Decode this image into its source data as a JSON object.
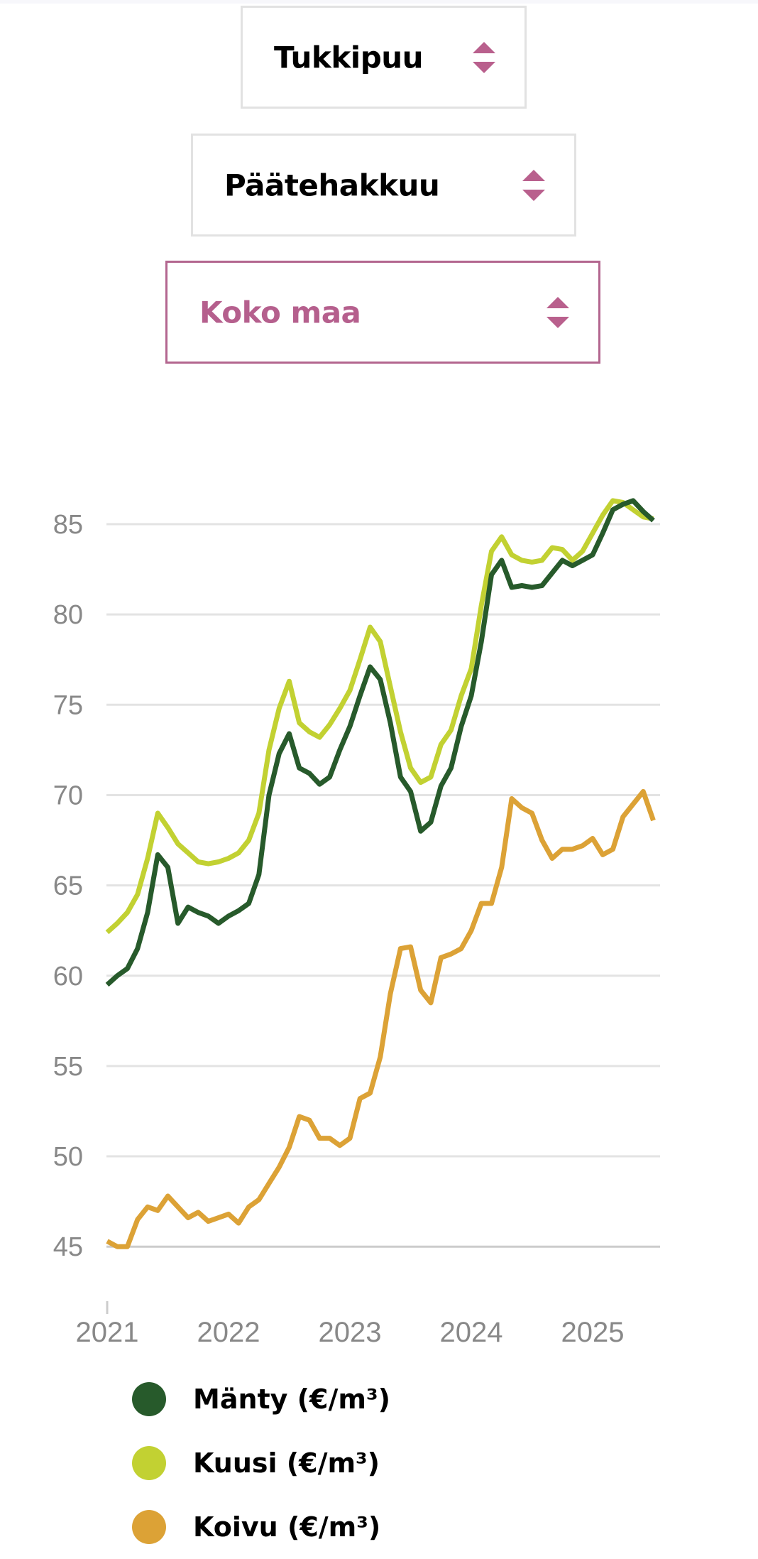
{
  "filters": {
    "assortment": {
      "value": "Tukkipuu"
    },
    "cutting_type": {
      "value": "Päätehakkuu"
    },
    "region": {
      "value": "Koko maa"
    }
  },
  "colors": {
    "accent": "#b55f8d",
    "manty": "#275a2b",
    "kuusi": "#c2d132",
    "koivu": "#dca236",
    "grid": "#e3e3e3",
    "axis_text": "#888888"
  },
  "chart_data": {
    "type": "line",
    "title": "",
    "xlabel": "",
    "ylabel": "",
    "x_unit": "month",
    "x_start": "2021-01",
    "x": [
      "2021-01",
      "2021-02",
      "2021-03",
      "2021-04",
      "2021-05",
      "2021-06",
      "2021-07",
      "2021-08",
      "2021-09",
      "2021-10",
      "2021-11",
      "2021-12",
      "2022-01",
      "2022-02",
      "2022-03",
      "2022-04",
      "2022-05",
      "2022-06",
      "2022-07",
      "2022-08",
      "2022-09",
      "2022-10",
      "2022-11",
      "2022-12",
      "2023-01",
      "2023-02",
      "2023-03",
      "2023-04",
      "2023-05",
      "2023-06",
      "2023-07",
      "2023-08",
      "2023-09",
      "2023-10",
      "2023-11",
      "2023-12",
      "2024-01",
      "2024-02",
      "2024-03",
      "2024-04",
      "2024-05",
      "2024-06",
      "2024-07",
      "2024-08",
      "2024-09",
      "2024-10",
      "2024-11",
      "2024-12",
      "2025-01",
      "2025-02",
      "2025-03",
      "2025-04",
      "2025-05",
      "2025-06",
      "2025-07"
    ],
    "ylim": [
      45,
      87
    ],
    "xlim": [
      2021.0,
      2025.6
    ],
    "y_ticks": [
      "45",
      "50",
      "55",
      "60",
      "65",
      "70",
      "75",
      "80",
      "85"
    ],
    "y_tick_values": [
      45,
      50,
      55,
      60,
      65,
      70,
      75,
      80,
      85
    ],
    "x_ticks": [
      "2021",
      "2022",
      "2023",
      "2024",
      "2025"
    ],
    "x_tick_values": [
      2021,
      2022,
      2023,
      2024,
      2025
    ],
    "grid": true,
    "legend_position": "bottom",
    "series": [
      {
        "name": "Mänty (€/m³)",
        "color": "#275a2b",
        "values": [
          59.5,
          60.0,
          60.4,
          61.5,
          63.5,
          66.7,
          66.0,
          62.9,
          63.8,
          63.5,
          63.3,
          62.9,
          63.3,
          63.6,
          64.0,
          65.6,
          70.0,
          72.3,
          73.4,
          71.5,
          71.2,
          70.6,
          71.0,
          72.5,
          73.8,
          75.5,
          77.1,
          76.4,
          74.0,
          71.0,
          70.2,
          68.0,
          68.5,
          70.5,
          71.5,
          73.8,
          75.5,
          78.5,
          82.2,
          83.0,
          81.5,
          81.6,
          81.5,
          81.6,
          82.3,
          83.0,
          82.7,
          83.0,
          83.3,
          84.5,
          85.8,
          86.1,
          86.3,
          85.7,
          85.2
        ]
      },
      {
        "name": "Kuusi (€/m³)",
        "color": "#c2d132",
        "values": [
          62.4,
          62.9,
          63.5,
          64.5,
          66.5,
          69.0,
          68.2,
          67.3,
          66.8,
          66.3,
          66.2,
          66.3,
          66.5,
          66.8,
          67.5,
          69.0,
          72.5,
          74.8,
          76.3,
          74.0,
          73.5,
          73.2,
          73.9,
          74.8,
          75.8,
          77.5,
          79.3,
          78.5,
          76.0,
          73.5,
          71.5,
          70.7,
          71.0,
          72.8,
          73.6,
          75.5,
          77.0,
          80.5,
          83.5,
          84.3,
          83.3,
          83.0,
          82.9,
          83.0,
          83.7,
          83.6,
          83.0,
          83.5,
          84.5,
          85.5,
          86.3,
          86.2,
          85.8,
          85.4,
          85.3
        ]
      },
      {
        "name": "Koivu (€/m³)",
        "color": "#dca236",
        "values": [
          45.3,
          45.0,
          45.0,
          46.5,
          47.2,
          47.0,
          47.8,
          47.2,
          46.6,
          46.9,
          46.4,
          46.6,
          46.8,
          46.3,
          47.2,
          47.6,
          48.5,
          49.4,
          50.5,
          52.2,
          52.0,
          51.0,
          51.0,
          50.6,
          51.0,
          53.2,
          53.5,
          55.5,
          59.0,
          61.5,
          61.6,
          59.2,
          58.5,
          61.0,
          61.2,
          61.5,
          62.5,
          64.0,
          64.0,
          66.0,
          69.8,
          69.3,
          69.0,
          67.5,
          66.5,
          67.0,
          67.0,
          67.2,
          67.6,
          66.7,
          67.0,
          68.8,
          69.5,
          70.2,
          68.6
        ]
      }
    ]
  }
}
